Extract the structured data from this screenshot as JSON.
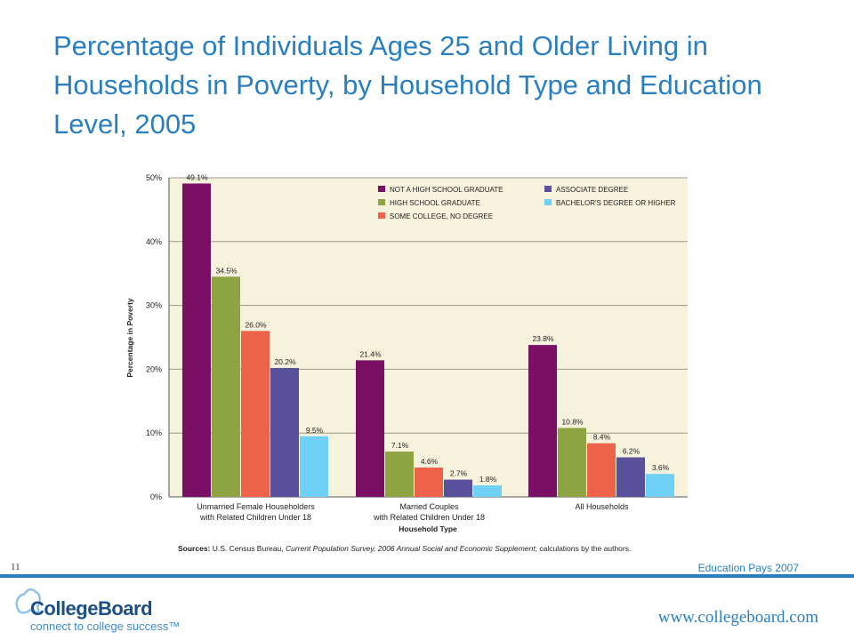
{
  "title": "Percentage of Individuals Ages 25 and Older Living in Households in Poverty, by Household Type and Education Level, 2005",
  "sources": {
    "label": "Sources:",
    "text1": " U.S. Census Bureau, ",
    "italic": "Current Population Survey, 2006 Annual Social and Economic Supplement",
    "text2": "; calculations by the authors."
  },
  "footer": {
    "page_number": "11",
    "report_name": "Education Pays 2007",
    "url": "www.collegeboard.com",
    "logo_name": "CollegeBoard",
    "logo_tagline": "connect to college success™"
  },
  "colors": {
    "plot_bg": "#f7f2dc",
    "grid": "#9e9a8a",
    "series": [
      "#7b0f66",
      "#8ea342",
      "#ee624a",
      "#59519b",
      "#6fd1f5"
    ]
  },
  "chart_data": {
    "type": "bar",
    "xlabel": "Household Type",
    "ylabel": "Percentage in Poverty",
    "ylim": [
      0,
      50
    ],
    "yticks": [
      "0%",
      "10%",
      "20%",
      "30%",
      "40%",
      "50%"
    ],
    "grid": true,
    "legend_position": "top-right",
    "categories": [
      [
        "Unmarried Female Householders",
        "with Related Children Under 18"
      ],
      [
        "Married Couples",
        "with Related Children Under 18"
      ],
      [
        "All Households"
      ]
    ],
    "series": [
      {
        "name": "NOT A HIGH SCHOOL GRADUATE",
        "values": [
          49.1,
          21.4,
          23.8
        ],
        "labels": [
          "49.1%",
          "21.4%",
          "23.8%"
        ]
      },
      {
        "name": "HIGH SCHOOL GRADUATE",
        "values": [
          34.5,
          7.1,
          10.8
        ],
        "labels": [
          "34.5%",
          "7.1%",
          "10.8%"
        ]
      },
      {
        "name": "SOME COLLEGE, NO DEGREE",
        "values": [
          26.0,
          4.6,
          8.4
        ],
        "labels": [
          "26.0%",
          "4.6%",
          "8.4%"
        ]
      },
      {
        "name": "ASSOCIATE DEGREE",
        "values": [
          20.2,
          2.7,
          6.2
        ],
        "labels": [
          "20.2%",
          "2.7%",
          "6.2%"
        ]
      },
      {
        "name": "BACHELOR'S DEGREE OR HIGHER",
        "values": [
          9.5,
          1.8,
          3.6
        ],
        "labels": [
          "9.5%",
          "1.8%",
          "3.6%"
        ]
      }
    ]
  }
}
